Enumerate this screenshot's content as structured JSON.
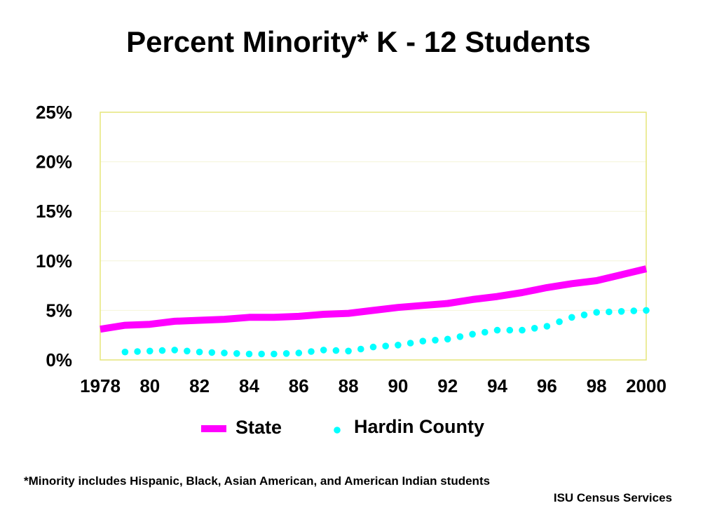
{
  "title": "Percent Minority* K - 12 Students",
  "footnote": "*Minority includes Hispanic, Black, Asian American, and American Indian students",
  "credit": "ISU Census Services",
  "colors": {
    "state": "#ff00ff",
    "hardin": "#00ffff",
    "plot_border": "#e6e67a",
    "grid": "#f4f4d8"
  },
  "chart_data": {
    "type": "line",
    "x": [
      1978,
      1979,
      1980,
      1981,
      1982,
      1983,
      1984,
      1985,
      1986,
      1987,
      1988,
      1989,
      1990,
      1991,
      1992,
      1993,
      1994,
      1995,
      1996,
      1997,
      1998,
      1999,
      2000
    ],
    "xlim": [
      1978,
      2000
    ],
    "ylim": [
      0,
      25
    ],
    "y_ticks": [
      "0%",
      "5%",
      "10%",
      "15%",
      "20%",
      "25%"
    ],
    "x_ticks": [
      "1978",
      "80",
      "82",
      "84",
      "86",
      "88",
      "90",
      "92",
      "94",
      "96",
      "98",
      "2000"
    ],
    "series": [
      {
        "name": "State",
        "style": "solid",
        "values": [
          3.1,
          3.5,
          3.6,
          3.9,
          4.0,
          4.1,
          4.3,
          4.3,
          4.4,
          4.6,
          4.7,
          5.0,
          5.3,
          5.5,
          5.7,
          6.1,
          6.4,
          6.8,
          7.3,
          7.7,
          8.0,
          8.6,
          9.2
        ]
      },
      {
        "name": "Hardin County",
        "style": "dotted",
        "values": [
          0.7,
          0.8,
          0.9,
          1.0,
          0.8,
          0.7,
          0.6,
          0.6,
          0.7,
          1.0,
          0.9,
          1.3,
          1.5,
          1.9,
          2.1,
          2.6,
          3.0,
          3.0,
          3.4,
          4.3,
          4.8,
          4.9,
          5.0
        ]
      }
    ],
    "legend_position": "bottom"
  }
}
